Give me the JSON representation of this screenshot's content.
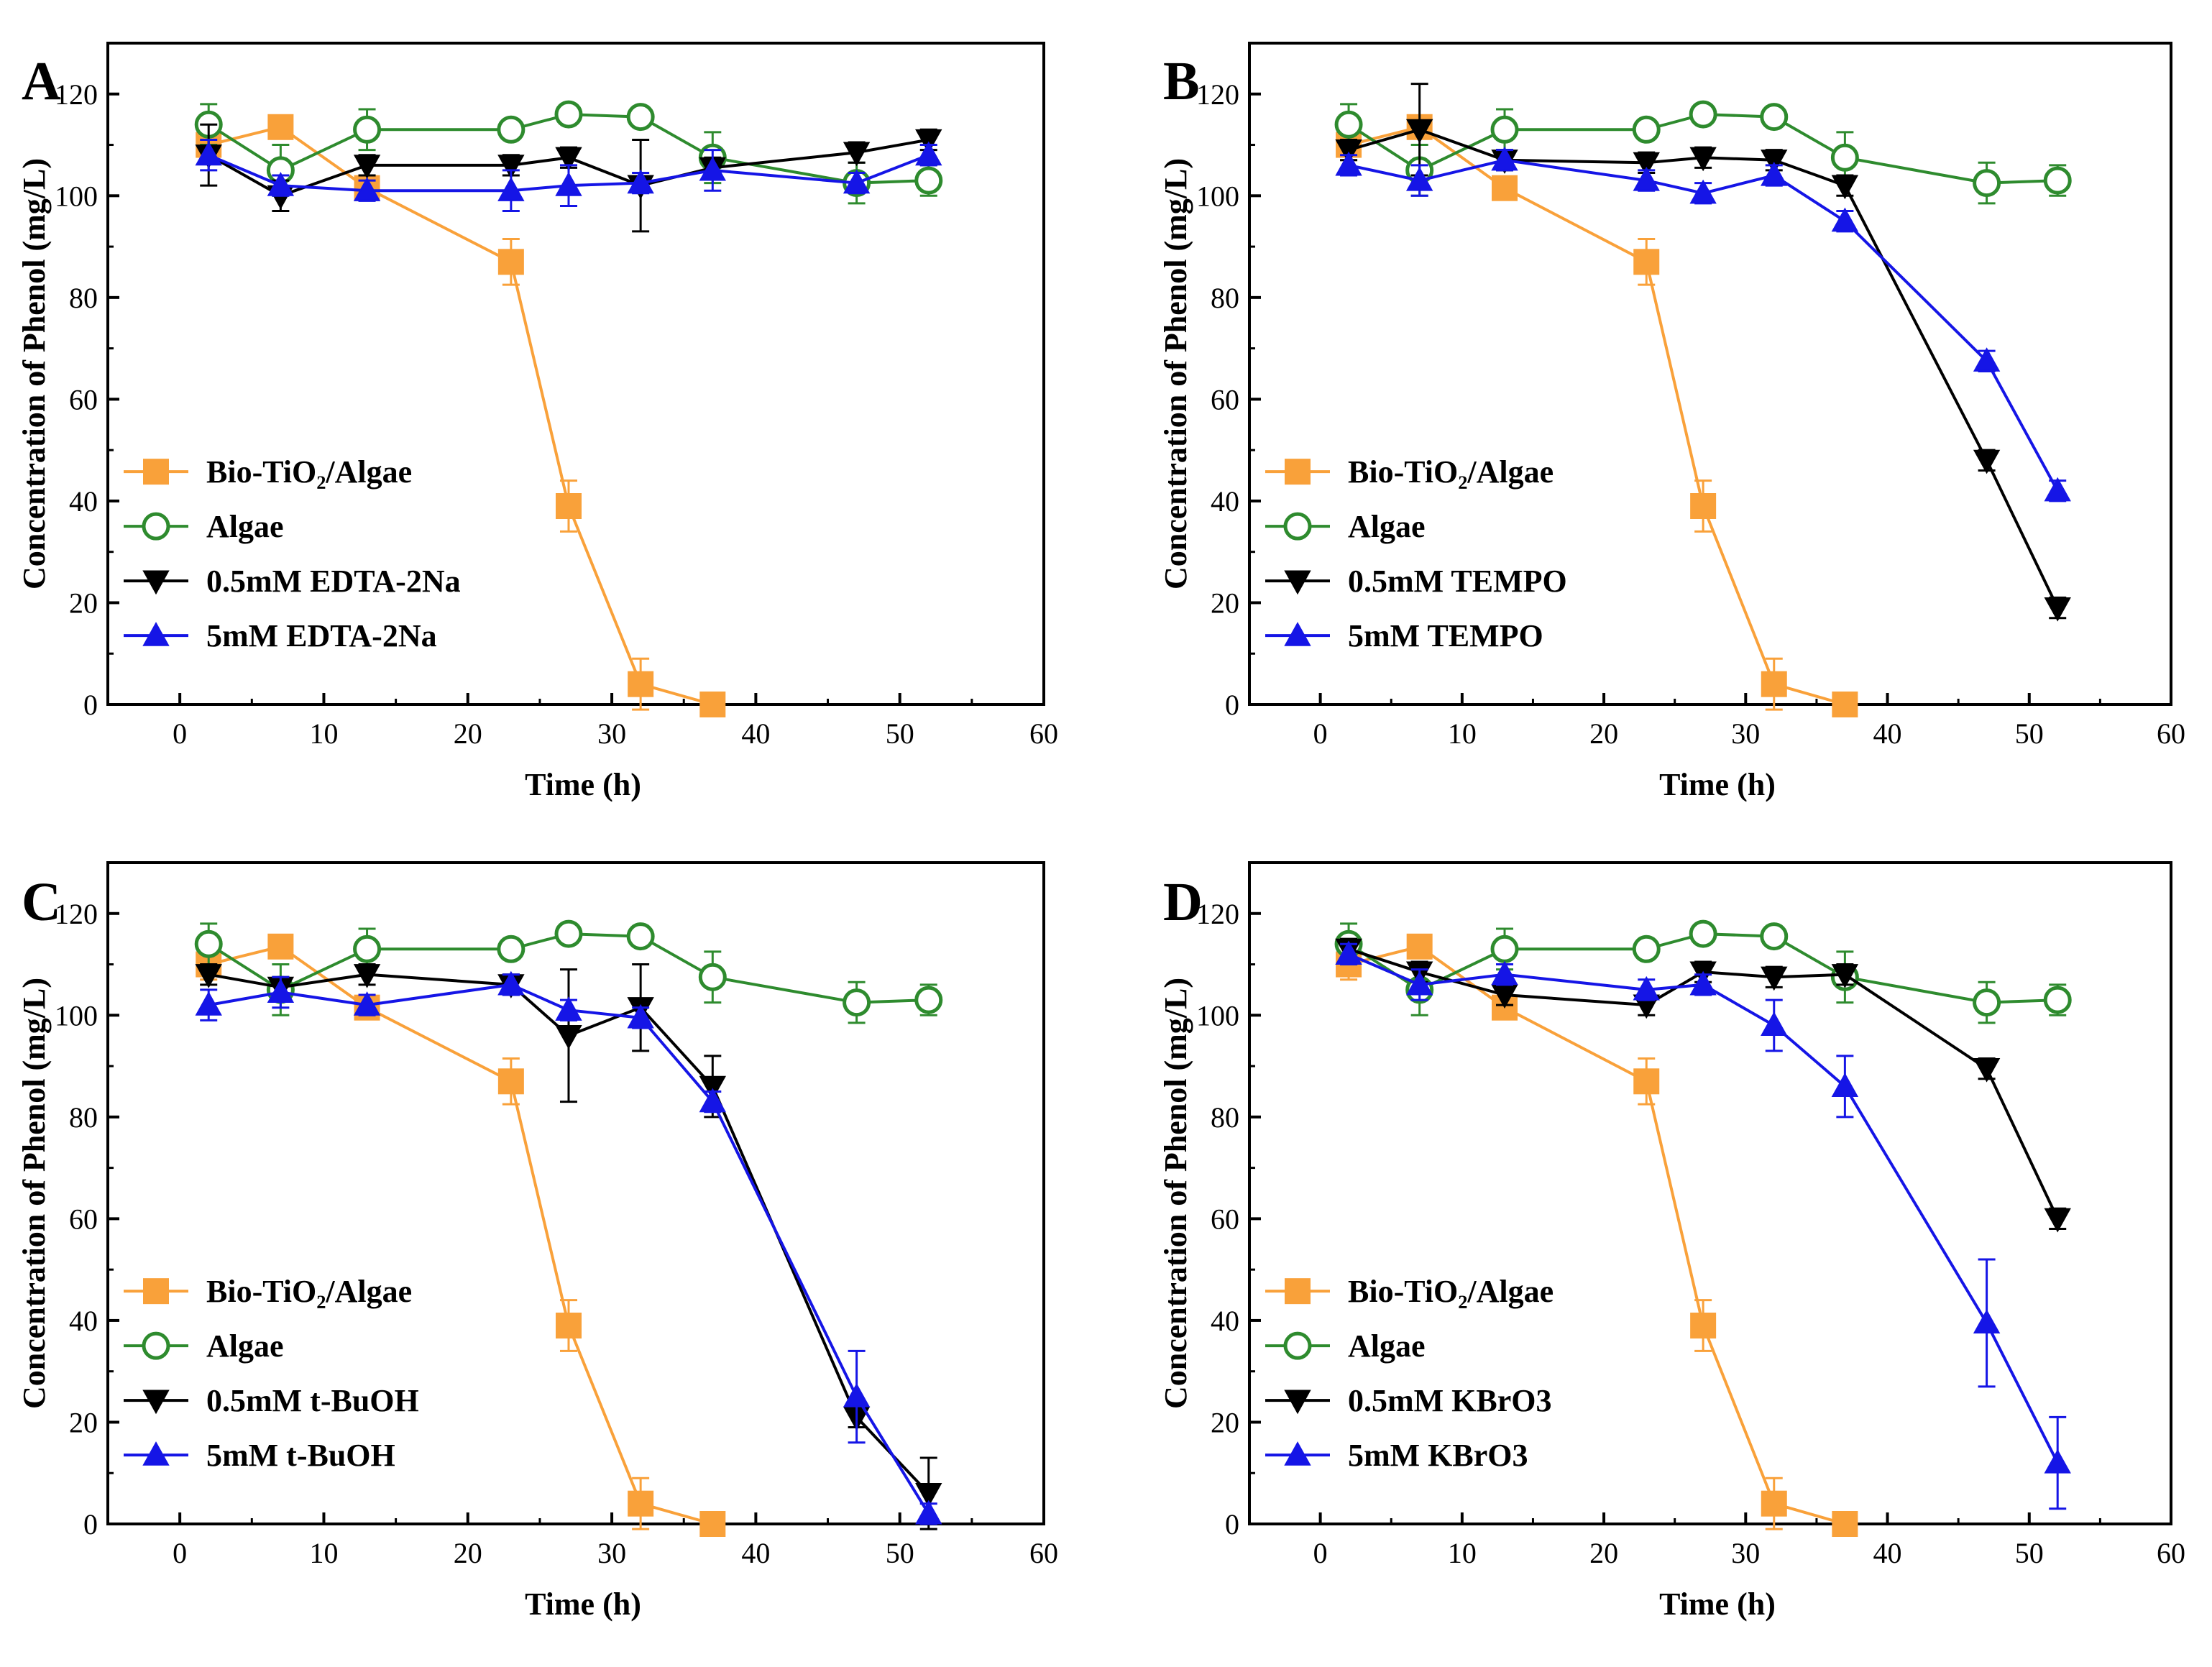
{
  "chart_data": [
    {
      "panel": "A",
      "type": "line",
      "xlabel": "Time (h)",
      "ylabel": "Concentration of Phenol (mg/L)",
      "xlim": [
        -5,
        60
      ],
      "ylim": [
        0,
        130
      ],
      "xticks": [
        0,
        10,
        20,
        30,
        40,
        50,
        60
      ],
      "yticks": [
        0,
        20,
        40,
        60,
        80,
        100,
        120
      ],
      "legend_position": "bottom-left",
      "series": [
        {
          "name": "Bio-TiO₂/Algae",
          "color": "#F9A13A",
          "marker": "square-filled",
          "points": [
            [
              2,
              110,
              3
            ],
            [
              7,
              113.5,
              1.5
            ],
            [
              13,
              101.5,
              2
            ],
            [
              23,
              87,
              4.5
            ],
            [
              27,
              39,
              5
            ],
            [
              32,
              4,
              5
            ],
            [
              37,
              0,
              0
            ]
          ]
        },
        {
          "name": "Algae",
          "color": "#2E8B2E",
          "marker": "circle-open",
          "points": [
            [
              2,
              114,
              4
            ],
            [
              7,
              105,
              5
            ],
            [
              13,
              113,
              4
            ],
            [
              23,
              113,
              0
            ],
            [
              27,
              116,
              0
            ],
            [
              32,
              115.5,
              0
            ],
            [
              37,
              107.5,
              5
            ],
            [
              47,
              102.5,
              4
            ],
            [
              52,
              103,
              3
            ]
          ]
        },
        {
          "name": "0.5mM EDTA-2Na",
          "color": "#000000",
          "marker": "triangle-down-filled",
          "points": [
            [
              2,
              108,
              6
            ],
            [
              7,
              100,
              3
            ],
            [
              13,
              106,
              2
            ],
            [
              23,
              106,
              2
            ],
            [
              27,
              107.5,
              2
            ],
            [
              32,
              102,
              9
            ],
            [
              37,
              105.5,
              2
            ],
            [
              47,
              108.5,
              2
            ],
            [
              52,
              111,
              2
            ]
          ]
        },
        {
          "name": "5mM EDTA-2Na",
          "color": "#1515E6",
          "marker": "triangle-up-filled",
          "points": [
            [
              2,
              108,
              3
            ],
            [
              7,
              102,
              2
            ],
            [
              13,
              101,
              2
            ],
            [
              23,
              101,
              4
            ],
            [
              27,
              102,
              4
            ],
            [
              32,
              102.5,
              2
            ],
            [
              37,
              105,
              4
            ],
            [
              47,
              102.5,
              2
            ],
            [
              52,
              108,
              2
            ]
          ]
        }
      ]
    },
    {
      "panel": "B",
      "type": "line",
      "xlabel": "Time (h)",
      "ylabel": "Concentration of Phenol (mg/L)",
      "xlim": [
        -5,
        60
      ],
      "ylim": [
        0,
        130
      ],
      "xticks": [
        0,
        10,
        20,
        30,
        40,
        50,
        60
      ],
      "yticks": [
        0,
        20,
        40,
        60,
        80,
        100,
        120
      ],
      "legend_position": "bottom-left",
      "series": [
        {
          "name": "Bio-TiO₂/Algae",
          "color": "#F9A13A",
          "marker": "square-filled",
          "points": [
            [
              2,
              110,
              3
            ],
            [
              7,
              113.5,
              1.5
            ],
            [
              13,
              101.5,
              2
            ],
            [
              23,
              87,
              4.5
            ],
            [
              27,
              39,
              5
            ],
            [
              32,
              4,
              5
            ],
            [
              37,
              0,
              0
            ]
          ]
        },
        {
          "name": "Algae",
          "color": "#2E8B2E",
          "marker": "circle-open",
          "points": [
            [
              2,
              114,
              4
            ],
            [
              7,
              105,
              5
            ],
            [
              13,
              113,
              4
            ],
            [
              23,
              113,
              0
            ],
            [
              27,
              116,
              0
            ],
            [
              32,
              115.5,
              0
            ],
            [
              37,
              107.5,
              5
            ],
            [
              47,
              102.5,
              4
            ],
            [
              52,
              103,
              3
            ]
          ]
        },
        {
          "name": "0.5mM TEMPO",
          "color": "#000000",
          "marker": "triangle-down-filled",
          "points": [
            [
              2,
              109,
              2
            ],
            [
              7,
              113,
              9
            ],
            [
              13,
              107,
              2
            ],
            [
              23,
              106.5,
              2
            ],
            [
              27,
              107.5,
              2
            ],
            [
              32,
              107,
              2
            ],
            [
              37,
              102,
              2
            ],
            [
              47,
              48,
              2
            ],
            [
              52,
              19,
              2
            ]
          ]
        },
        {
          "name": "5mM TEMPO",
          "color": "#1515E6",
          "marker": "triangle-up-filled",
          "points": [
            [
              2,
              106,
              2
            ],
            [
              7,
              103,
              3
            ],
            [
              13,
              107,
              2
            ],
            [
              23,
              103,
              2
            ],
            [
              27,
              100.5,
              2
            ],
            [
              32,
              104,
              2
            ],
            [
              37,
              95,
              2
            ],
            [
              47,
              67.5,
              2
            ],
            [
              52,
              42,
              2
            ]
          ]
        }
      ]
    },
    {
      "panel": "C",
      "type": "line",
      "xlabel": "Time (h)",
      "ylabel": "Concentration of Phenol (mg/L)",
      "xlim": [
        -5,
        60
      ],
      "ylim": [
        0,
        130
      ],
      "xticks": [
        0,
        10,
        20,
        30,
        40,
        50,
        60
      ],
      "yticks": [
        0,
        20,
        40,
        60,
        80,
        100,
        120
      ],
      "legend_position": "bottom-left",
      "series": [
        {
          "name": "Bio-TiO₂/Algae",
          "color": "#F9A13A",
          "marker": "square-filled",
          "points": [
            [
              2,
              110,
              3
            ],
            [
              7,
              113.5,
              1.5
            ],
            [
              13,
              101.5,
              2
            ],
            [
              23,
              87,
              4.5
            ],
            [
              27,
              39,
              5
            ],
            [
              32,
              4,
              5
            ],
            [
              37,
              0,
              0
            ]
          ]
        },
        {
          "name": "Algae",
          "color": "#2E8B2E",
          "marker": "circle-open",
          "points": [
            [
              2,
              114,
              4
            ],
            [
              7,
              105,
              5
            ],
            [
              13,
              113,
              4
            ],
            [
              23,
              113,
              0
            ],
            [
              27,
              116,
              0
            ],
            [
              32,
              115.5,
              0
            ],
            [
              37,
              107.5,
              5
            ],
            [
              47,
              102.5,
              4
            ],
            [
              52,
              103,
              3
            ]
          ]
        },
        {
          "name": "0.5mM t-BuOH",
          "color": "#000000",
          "marker": "triangle-down-filled",
          "points": [
            [
              2,
              108,
              2
            ],
            [
              7,
              105.5,
              2
            ],
            [
              13,
              108,
              2
            ],
            [
              23,
              106,
              2
            ],
            [
              27,
              96,
              13
            ],
            [
              32,
              101.5,
              8.5
            ],
            [
              37,
              86,
              6
            ],
            [
              47,
              21,
              2
            ],
            [
              52,
              6,
              7
            ]
          ]
        },
        {
          "name": "5mM t-BuOH",
          "color": "#1515E6",
          "marker": "triangle-up-filled",
          "points": [
            [
              2,
              102,
              3
            ],
            [
              7,
              104.5,
              3
            ],
            [
              13,
              102,
              2
            ],
            [
              23,
              106,
              2
            ],
            [
              27,
              101,
              2
            ],
            [
              32,
              99.5,
              2
            ],
            [
              37,
              83,
              2
            ],
            [
              47,
              25,
              9
            ],
            [
              52,
              2,
              2
            ]
          ]
        }
      ]
    },
    {
      "panel": "D",
      "type": "line",
      "xlabel": "Time (h)",
      "ylabel": "Concentration of Phenol (mg/L)",
      "xlim": [
        -5,
        60
      ],
      "ylim": [
        0,
        130
      ],
      "xticks": [
        0,
        10,
        20,
        30,
        40,
        50,
        60
      ],
      "yticks": [
        0,
        20,
        40,
        60,
        80,
        100,
        120
      ],
      "legend_position": "bottom-left",
      "series": [
        {
          "name": "Bio-TiO₂/Algae",
          "color": "#F9A13A",
          "marker": "square-filled",
          "points": [
            [
              2,
              110,
              3
            ],
            [
              7,
              113.5,
              1.5
            ],
            [
              13,
              101.5,
              2
            ],
            [
              23,
              87,
              4.5
            ],
            [
              27,
              39,
              5
            ],
            [
              32,
              4,
              5
            ],
            [
              37,
              0,
              0
            ]
          ]
        },
        {
          "name": "Algae",
          "color": "#2E8B2E",
          "marker": "circle-open",
          "points": [
            [
              2,
              114,
              4
            ],
            [
              7,
              105,
              5
            ],
            [
              13,
              113,
              4
            ],
            [
              23,
              113,
              0
            ],
            [
              27,
              116,
              0
            ],
            [
              32,
              115.5,
              0
            ],
            [
              37,
              107.5,
              5
            ],
            [
              47,
              102.5,
              4
            ],
            [
              52,
              103,
              3
            ]
          ]
        },
        {
          "name": "0.5mM KBrO3",
          "color": "#000000",
          "marker": "triangle-down-filled",
          "points": [
            [
              2,
              113,
              2
            ],
            [
              7,
              108.5,
              2
            ],
            [
              13,
              104,
              2
            ],
            [
              23,
              102,
              2
            ],
            [
              27,
              108.5,
              2
            ],
            [
              32,
              107.5,
              2
            ],
            [
              37,
              108,
              2
            ],
            [
              47,
              89.5,
              2
            ],
            [
              52,
              60,
              2
            ]
          ]
        },
        {
          "name": "5mM KBrO3",
          "color": "#1515E6",
          "marker": "triangle-up-filled",
          "points": [
            [
              2,
              112,
              2
            ],
            [
              7,
              106,
              3
            ],
            [
              13,
              108,
              2
            ],
            [
              23,
              105,
              2
            ],
            [
              27,
              106,
              2
            ],
            [
              32,
              98,
              5
            ],
            [
              37,
              86,
              6
            ],
            [
              47,
              39.5,
              12.5
            ],
            [
              52,
              12,
              9
            ]
          ]
        }
      ]
    }
  ]
}
